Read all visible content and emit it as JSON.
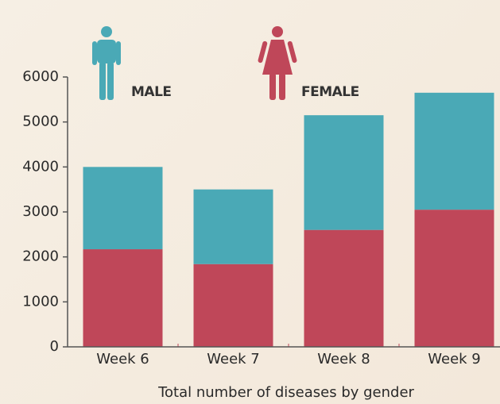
{
  "chart_data": {
    "type": "stacked_bar",
    "categories": [
      "Week 6",
      "Week 7",
      "Week 8",
      "Week 9"
    ],
    "series": [
      {
        "name": "MALE",
        "color": "#4aa9b6",
        "values": [
          1830,
          1660,
          2550,
          2600
        ]
      },
      {
        "name": "FEMALE",
        "color": "#bf4759",
        "values": [
          2170,
          1840,
          2600,
          3050
        ]
      }
    ],
    "ylim": [
      0,
      6000
    ],
    "yticks": [
      0,
      1000,
      2000,
      3000,
      4000,
      5000,
      6000
    ],
    "xlabel": "Total number of diseases by gender",
    "grid": false
  }
}
